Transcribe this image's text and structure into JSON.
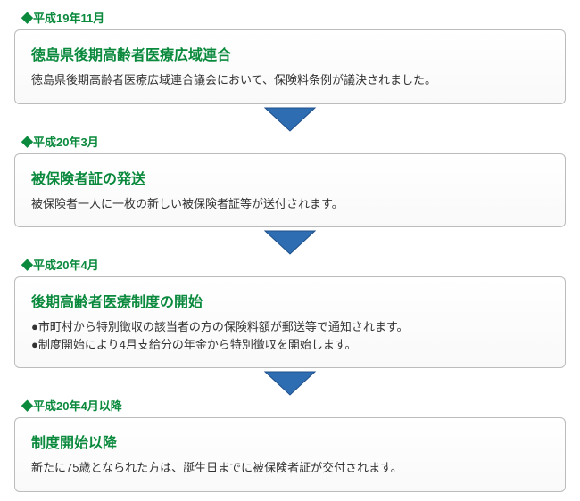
{
  "colors": {
    "date_label": "#0b8a3e",
    "step_title": "#0b8a3e",
    "box_border": "#bcbcbc",
    "box_bg_top": "#ffffff",
    "box_bg_bottom": "#f9f9f9",
    "body_text": "#333333",
    "arrow_fill": "#2f6db3",
    "arrow_stroke": "#1d4f8a"
  },
  "arrow": {
    "width": 64,
    "height": 30
  },
  "steps": [
    {
      "date": "◆平成19年11月",
      "title": "徳島県後期高齢者医療広域連合",
      "body": [
        "徳島県後期高齢者医療広域連合議会において、保険料条例が議決されました。"
      ]
    },
    {
      "date": "◆平成20年3月",
      "title": "被保険者証の発送",
      "body": [
        "被保険者一人に一枚の新しい被保険者証等が送付されます。"
      ]
    },
    {
      "date": "◆平成20年4月",
      "title": "後期高齢者医療制度の開始",
      "body": [
        "●市町村から特別徴収の該当者の方の保険料額が郵送等で通知されます。",
        "●制度開始により4月支給分の年金から特別徴収を開始します。"
      ]
    },
    {
      "date": "◆平成20年4月以降",
      "title": "制度開始以降",
      "body": [
        "新たに75歳となられた方は、誕生日までに被保険者証が交付されます。"
      ]
    }
  ]
}
